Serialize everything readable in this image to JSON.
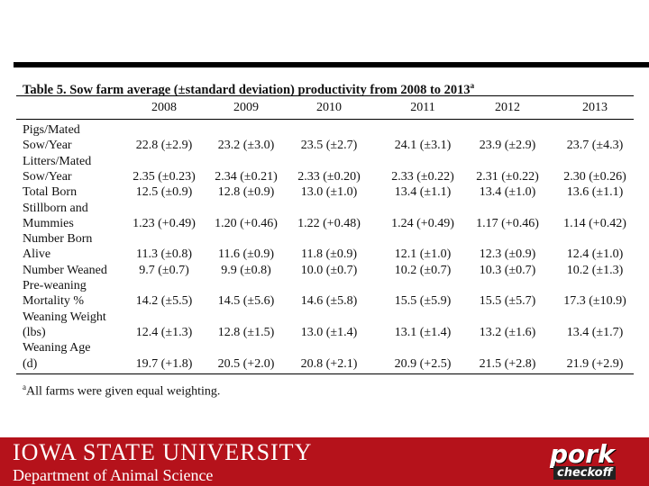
{
  "table": {
    "title": "Table 5. Sow farm average (±standard deviation) productivity from 2008 to 2013",
    "title_note": "a",
    "columns": [
      "2008",
      "2009",
      "2010",
      "2011",
      "2012",
      "2013"
    ],
    "rows": [
      {
        "label": [
          "Pigs/Mated",
          "Sow/Year"
        ],
        "cells": [
          "22.8 (±2.9)",
          "23.2 (±3.0)",
          "23.5 (±2.7)",
          "24.1 (±3.1)",
          "23.9 (±2.9)",
          "23.7 (±4.3)"
        ]
      },
      {
        "label": [
          "Litters/Mated",
          "Sow/Year"
        ],
        "cells": [
          "2.35 (±0.23)",
          "2.34 (±0.21)",
          "2.33 (±0.20)",
          "2.33 (±0.22)",
          "2.31 (±0.22)",
          "2.30 (±0.26)"
        ]
      },
      {
        "label": [
          "Total Born"
        ],
        "cells": [
          "12.5 (±0.9)",
          "12.8 (±0.9)",
          "13.0 (±1.0)",
          "13.4 (±1.1)",
          "13.4 (±1.0)",
          "13.6 (±1.1)"
        ]
      },
      {
        "label": [
          "Stillborn and",
          "Mummies"
        ],
        "cells": [
          "1.23 (+0.49)",
          "1.20 (+0.46)",
          "1.22 (+0.48)",
          "1.24 (+0.49)",
          "1.17 (+0.46)",
          "1.14 (+0.42)"
        ]
      },
      {
        "label": [
          "Number Born",
          "Alive"
        ],
        "cells": [
          "11.3 (±0.8)",
          "11.6 (±0.9)",
          "11.8 (±0.9)",
          "12.1 (±1.0)",
          "12.3 (±0.9)",
          "12.4 (±1.0)"
        ]
      },
      {
        "label": [
          "Number Weaned"
        ],
        "cells": [
          "9.7 (±0.7)",
          "9.9 (±0.8)",
          "10.0 (±0.7)",
          "10.2 (±0.7)",
          "10.3 (±0.7)",
          "10.2 (±1.3)"
        ]
      },
      {
        "label": [
          "Pre-weaning",
          "Mortality %"
        ],
        "cells": [
          "14.2 (±5.5)",
          "14.5 (±5.6)",
          "14.6 (±5.8)",
          "15.5 (±5.9)",
          "15.5 (±5.7)",
          "17.3 (±10.9)"
        ]
      },
      {
        "label": [
          "Weaning Weight",
          "(lbs)"
        ],
        "cells": [
          "12.4 (±1.3)",
          "12.8 (±1.5)",
          "13.0 (±1.4)",
          "13.1 (±1.4)",
          "13.2 (±1.6)",
          "13.4 (±1.7)"
        ]
      },
      {
        "label": [
          "Weaning Age",
          "(d)"
        ],
        "cells": [
          "19.7 (+1.8)",
          "20.5 (+2.0)",
          "20.8 (+2.1)",
          "20.9 (+2.5)",
          "21.5 (+2.8)",
          "21.9 (+2.9)"
        ]
      }
    ],
    "footnote_mark": "a",
    "footnote": "All farms were given equal weighting."
  },
  "footer": {
    "university": "IOWA STATE UNIVERSITY",
    "department": "Department of Animal Science",
    "logo": [
      "pork",
      "checkoff"
    ]
  }
}
